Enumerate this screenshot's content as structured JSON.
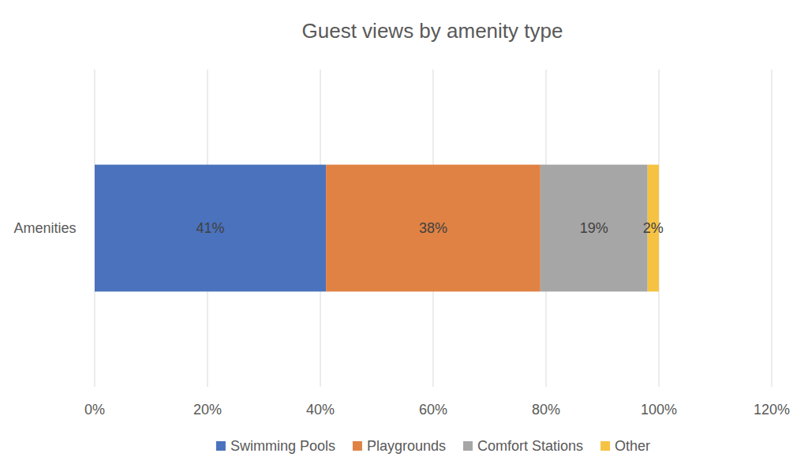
{
  "chart_data": {
    "type": "bar",
    "orientation": "horizontal",
    "stacked": true,
    "title": "Guest views by amenity type",
    "categories": [
      "Amenities"
    ],
    "series": [
      {
        "name": "Swimming Pools",
        "color": "#4a72bd",
        "values": [
          41
        ],
        "value_labels": [
          "41%"
        ]
      },
      {
        "name": "Playgrounds",
        "color": "#e08244",
        "values": [
          38
        ],
        "value_labels": [
          "38%"
        ]
      },
      {
        "name": "Comfort Stations",
        "color": "#a6a6a6",
        "values": [
          19
        ],
        "value_labels": [
          "19%"
        ]
      },
      {
        "name": "Other",
        "color": "#f6c244",
        "values": [
          2
        ],
        "value_labels": [
          "2%"
        ]
      }
    ],
    "xlim": [
      0,
      120
    ],
    "xticks": [
      {
        "value": 0,
        "label": "0%"
      },
      {
        "value": 20,
        "label": "20%"
      },
      {
        "value": 40,
        "label": "40%"
      },
      {
        "value": 60,
        "label": "60%"
      },
      {
        "value": 80,
        "label": "80%"
      },
      {
        "value": 100,
        "label": "100%"
      },
      {
        "value": 120,
        "label": "120%"
      }
    ],
    "grid": true,
    "legend": "bottom",
    "data_labels": true
  }
}
